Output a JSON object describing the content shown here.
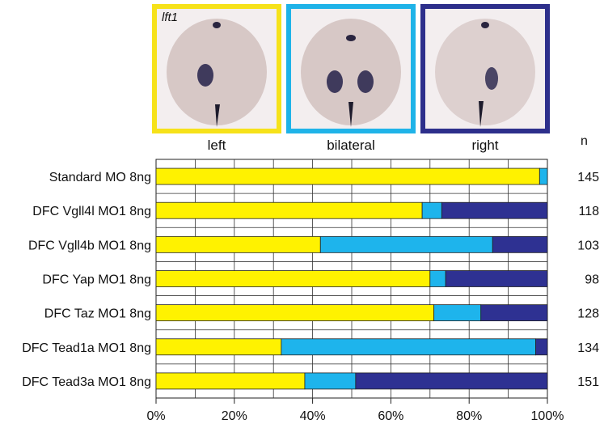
{
  "panels": {
    "gene": "lft1",
    "items": [
      {
        "label": "left",
        "border": "#f6e21a"
      },
      {
        "label": "bilateral",
        "border": "#1fb3e8"
      },
      {
        "label": "right",
        "border": "#2d2f8b"
      }
    ]
  },
  "n_header": "n",
  "colors": {
    "left": "#fff200",
    "bilateral": "#1eb4ec",
    "right": "#2e3192"
  },
  "chart_data": {
    "type": "bar",
    "orientation": "horizontal",
    "stacked": true,
    "categories": [
      "Standard MO 8ng",
      "DFC Vgll4l MO1 8ng",
      "DFC Vgll4b MO1 8ng",
      "DFC Yap MO1 8ng",
      "DFC Taz MO1 8ng",
      "DFC Tead1a MO1 8ng",
      "DFC Tead3a MO1 8ng"
    ],
    "series": [
      {
        "name": "left",
        "values": [
          98,
          68,
          42,
          70,
          71,
          32,
          38
        ]
      },
      {
        "name": "bilateral",
        "values": [
          2,
          5,
          44,
          4,
          12,
          65,
          13
        ]
      },
      {
        "name": "right",
        "values": [
          0,
          27,
          14,
          26,
          17,
          3,
          49
        ]
      }
    ],
    "n_values": [
      "145",
      "118",
      "103",
      "98",
      "128",
      "134",
      "151"
    ],
    "xlim": [
      0,
      100
    ],
    "xticks": [
      "0%",
      "20%",
      "40%",
      "60%",
      "80%",
      "100%"
    ],
    "xtick_values": [
      0,
      20,
      40,
      60,
      80,
      100
    ],
    "grid": true
  }
}
